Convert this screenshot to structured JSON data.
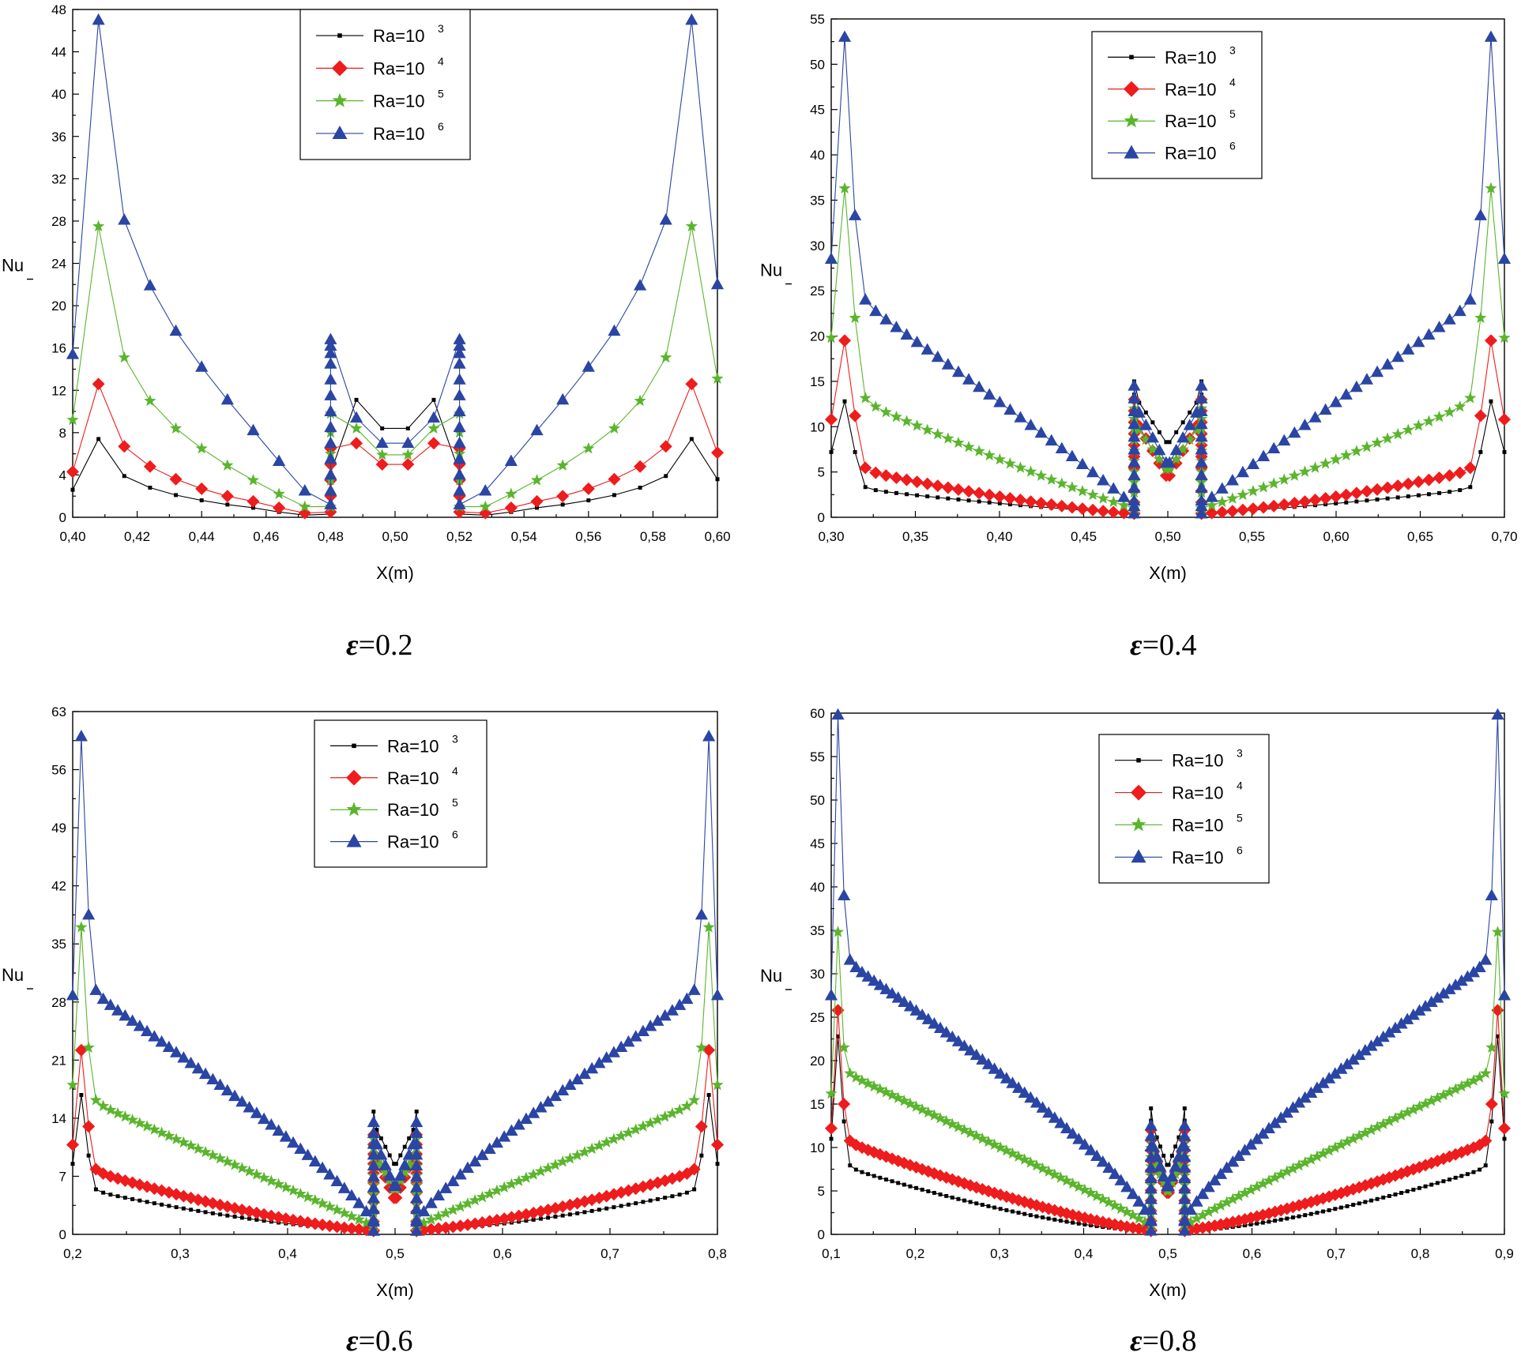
{
  "colors": {
    "black": "#000000",
    "red": "#ee1c1c",
    "green": "#5ab52d",
    "blue": "#2a45a3"
  },
  "chart_data": [
    {
      "type": "line",
      "title": "",
      "caption": {
        "symbol": "ε",
        "text": "=0.2"
      },
      "xlabel": "X(m)",
      "ylabel": "Nu",
      "xlim": [
        0.4,
        0.6
      ],
      "ylim": [
        0,
        48
      ],
      "xticks": [
        0.4,
        0.42,
        0.44,
        0.46,
        0.48,
        0.5,
        0.52,
        0.54,
        0.56,
        0.58,
        0.6
      ],
      "xtick_labels": [
        "0,40",
        "0,42",
        "0,44",
        "0,46",
        "0,48",
        "0,50",
        "0,52",
        "0,54",
        "0,56",
        "0,58",
        "0,60"
      ],
      "yticks": [
        0,
        4,
        8,
        12,
        16,
        20,
        24,
        28,
        32,
        36,
        40,
        44,
        48
      ],
      "ytick_labels": [
        "0",
        "4",
        "8",
        "12",
        "16",
        "20",
        "24",
        "28",
        "32",
        "36",
        "40",
        "44",
        "48"
      ],
      "legend_position": "top-center",
      "series": [
        {
          "name": "Ra=10",
          "sup": "3",
          "marker": "square",
          "color": "#000000",
          "x": [
            0.4,
            0.408,
            0.416,
            0.424,
            0.432,
            0.44,
            0.448,
            0.456,
            0.464,
            0.472,
            0.48,
            0.48,
            0.48,
            0.48,
            0.48,
            0.488,
            0.496,
            0.504,
            0.512,
            0.52,
            0.52,
            0.52,
            0.52,
            0.52,
            0.528,
            0.536,
            0.544,
            0.552,
            0.56,
            0.568,
            0.576,
            0.584,
            0.592,
            0.6
          ],
          "y": [
            2.6,
            7.4,
            3.9,
            2.8,
            2.1,
            1.6,
            1.2,
            0.9,
            0.5,
            0.2,
            0.3,
            1.5,
            2.5,
            3.5,
            4.2,
            11.1,
            8.4,
            8.4,
            11.1,
            4.2,
            3.5,
            2.5,
            1.5,
            0.3,
            0.2,
            0.5,
            0.9,
            1.2,
            1.6,
            2.1,
            2.8,
            3.9,
            7.4,
            3.6
          ]
        },
        {
          "name": "Ra=10",
          "sup": "4",
          "marker": "diamond",
          "color": "#ee1c1c",
          "x": [
            0.4,
            0.408,
            0.416,
            0.424,
            0.432,
            0.44,
            0.448,
            0.456,
            0.464,
            0.472,
            0.48,
            0.48,
            0.48,
            0.48,
            0.48,
            0.488,
            0.496,
            0.504,
            0.512,
            0.52,
            0.52,
            0.52,
            0.52,
            0.52,
            0.528,
            0.536,
            0.544,
            0.552,
            0.56,
            0.568,
            0.576,
            0.584,
            0.592,
            0.6
          ],
          "y": [
            4.3,
            12.6,
            6.7,
            4.8,
            3.6,
            2.7,
            2.0,
            1.5,
            0.9,
            0.4,
            0.5,
            2.0,
            3.5,
            5.0,
            6.5,
            7.0,
            5.0,
            5.0,
            7.0,
            6.5,
            5.0,
            3.5,
            2.0,
            0.5,
            0.4,
            0.9,
            1.5,
            2.0,
            2.7,
            3.6,
            4.8,
            6.7,
            12.6,
            6.1
          ]
        },
        {
          "name": "Ra=10",
          "sup": "5",
          "marker": "star",
          "color": "#5ab52d",
          "x": [
            0.4,
            0.408,
            0.416,
            0.424,
            0.432,
            0.44,
            0.448,
            0.456,
            0.464,
            0.472,
            0.48,
            0.48,
            0.48,
            0.48,
            0.48,
            0.488,
            0.496,
            0.504,
            0.512,
            0.52,
            0.52,
            0.52,
            0.52,
            0.52,
            0.528,
            0.536,
            0.544,
            0.552,
            0.56,
            0.568,
            0.576,
            0.584,
            0.592,
            0.6
          ],
          "y": [
            9.2,
            27.5,
            15.1,
            11.0,
            8.4,
            6.5,
            4.9,
            3.5,
            2.2,
            1.0,
            1.0,
            3.5,
            6.0,
            8.0,
            9.8,
            8.4,
            5.9,
            5.9,
            8.4,
            9.8,
            8.0,
            6.0,
            3.5,
            1.0,
            1.0,
            2.2,
            3.5,
            4.9,
            6.5,
            8.4,
            11.0,
            15.1,
            27.5,
            13.1
          ]
        },
        {
          "name": "Ra=10",
          "sup": "6",
          "marker": "triangle",
          "color": "#2a45a3",
          "x": [
            0.4,
            0.408,
            0.416,
            0.424,
            0.432,
            0.44,
            0.448,
            0.456,
            0.464,
            0.472,
            0.48,
            0.48,
            0.48,
            0.48,
            0.48,
            0.48,
            0.48,
            0.48,
            0.48,
            0.48,
            0.48,
            0.48,
            0.48,
            0.488,
            0.496,
            0.504,
            0.512,
            0.52,
            0.52,
            0.52,
            0.52,
            0.52,
            0.52,
            0.52,
            0.52,
            0.52,
            0.52,
            0.52,
            0.52,
            0.52,
            0.528,
            0.536,
            0.544,
            0.552,
            0.56,
            0.568,
            0.576,
            0.584,
            0.592,
            0.6
          ],
          "y": [
            15.4,
            47.0,
            28.1,
            21.9,
            17.6,
            14.2,
            11.1,
            8.2,
            5.3,
            2.5,
            1.2,
            2.5,
            4.0,
            5.5,
            7.0,
            8.5,
            10.0,
            11.5,
            13.0,
            14.5,
            15.5,
            16.2,
            16.8,
            9.4,
            7.0,
            7.0,
            9.4,
            16.8,
            16.2,
            15.5,
            14.5,
            13.0,
            11.5,
            10.0,
            8.5,
            7.0,
            5.5,
            4.0,
            2.5,
            1.2,
            2.5,
            5.3,
            8.2,
            11.1,
            14.2,
            17.6,
            21.9,
            28.1,
            47.0,
            22.0
          ]
        }
      ]
    },
    {
      "type": "line",
      "title": "",
      "caption": {
        "symbol": "ε",
        "text": "=0.4"
      },
      "xlabel": "X(m)",
      "ylabel": "Nu",
      "xlim": [
        0.3,
        0.7
      ],
      "ylim": [
        0,
        55
      ],
      "xticks": [
        0.3,
        0.35,
        0.4,
        0.45,
        0.5,
        0.55,
        0.6,
        0.65,
        0.7
      ],
      "xtick_labels": [
        "0,30",
        "0,35",
        "0,40",
        "0,45",
        "0,50",
        "0,55",
        "0,60",
        "0,65",
        "0,70"
      ],
      "yticks": [
        0,
        5,
        10,
        15,
        20,
        25,
        30,
        35,
        40,
        45,
        50,
        55
      ],
      "ytick_labels": [
        "0",
        "5",
        "10",
        "15",
        "20",
        "25",
        "30",
        "35",
        "40",
        "45",
        "50",
        "55"
      ],
      "legend_position": "top-center",
      "series": [
        {
          "name": "Ra=10",
          "sup": "3",
          "marker": "square",
          "color": "#000000",
          "profile": {
            "xa": 0.3,
            "xp": 0.308,
            "xe": 0.48,
            "n": 28,
            "start": 7.2,
            "peak": 12.8,
            "after": 7.2,
            "a": 3.3,
            "b": 0.5,
            "p": 1.3,
            "mid": 8.3,
            "wall": 15.0
          }
        },
        {
          "name": "Ra=10",
          "sup": "4",
          "marker": "diamond",
          "color": "#ee1c1c",
          "profile": {
            "xa": 0.3,
            "xp": 0.308,
            "xe": 0.48,
            "n": 28,
            "start": 10.8,
            "peak": 19.5,
            "after": 11.2,
            "a": 5.5,
            "b": 0.4,
            "p": 1.3,
            "mid": 4.6,
            "wall": 13.0
          }
        },
        {
          "name": "Ra=10",
          "sup": "5",
          "marker": "star",
          "color": "#5ab52d",
          "profile": {
            "xa": 0.3,
            "xp": 0.308,
            "xe": 0.48,
            "n": 28,
            "start": 19.8,
            "peak": 36.3,
            "after": 22.0,
            "a": 13.5,
            "b": 1.0,
            "p": 1.1,
            "mid": 5.3,
            "wall": 12.0
          }
        },
        {
          "name": "Ra=10",
          "sup": "6",
          "marker": "triangle",
          "color": "#2a45a3",
          "profile": {
            "xa": 0.3,
            "xp": 0.308,
            "xe": 0.48,
            "n": 28,
            "start": 28.5,
            "peak": 53.0,
            "after": 33.3,
            "a": 25.0,
            "b": 1.2,
            "p": 0.95,
            "mid": 6.0,
            "wall": 14.5
          }
        }
      ]
    },
    {
      "type": "line",
      "title": "",
      "caption": {
        "symbol": "ε",
        "text": "=0.6"
      },
      "xlabel": "X(m)",
      "ylabel": "Nu",
      "xlim": [
        0.2,
        0.8
      ],
      "ylim": [
        0,
        63
      ],
      "xticks": [
        0.2,
        0.3,
        0.4,
        0.5,
        0.6,
        0.7,
        0.8
      ],
      "xtick_labels": [
        "0,2",
        "0,3",
        "0,4",
        "0,5",
        "0,6",
        "0,7",
        "0,8"
      ],
      "yticks": [
        0,
        7,
        14,
        21,
        28,
        35,
        42,
        49,
        56,
        63
      ],
      "ytick_labels": [
        "0",
        "7",
        "14",
        "21",
        "28",
        "35",
        "42",
        "49",
        "56",
        "63"
      ],
      "legend_position": "top-center",
      "series": [
        {
          "name": "Ra=10",
          "sup": "3",
          "marker": "square",
          "color": "#000000",
          "profile": {
            "xa": 0.2,
            "xp": 0.208,
            "xe": 0.48,
            "n": 40,
            "start": 8.5,
            "peak": 16.8,
            "after": 9.5,
            "a": 5.5,
            "b": 0.5,
            "p": 1.5,
            "mid": 8.5,
            "wall": 14.8
          }
        },
        {
          "name": "Ra=10",
          "sup": "4",
          "marker": "diamond",
          "color": "#ee1c1c",
          "profile": {
            "xa": 0.2,
            "xp": 0.208,
            "xe": 0.48,
            "n": 40,
            "start": 10.8,
            "peak": 22.2,
            "after": 13.0,
            "a": 8.0,
            "b": 0.5,
            "p": 1.4,
            "mid": 4.4,
            "wall": 12.0
          }
        },
        {
          "name": "Ra=10",
          "sup": "5",
          "marker": "star",
          "color": "#5ab52d",
          "profile": {
            "xa": 0.2,
            "xp": 0.208,
            "xe": 0.48,
            "n": 40,
            "start": 18.0,
            "peak": 37.0,
            "after": 22.5,
            "a": 16.5,
            "b": 1.0,
            "p": 1.0,
            "mid": 5.5,
            "wall": 11.5
          }
        },
        {
          "name": "Ra=10",
          "sup": "6",
          "marker": "triangle",
          "color": "#2a45a3",
          "profile": {
            "xa": 0.2,
            "xp": 0.208,
            "xe": 0.48,
            "n": 40,
            "start": 28.8,
            "peak": 60.0,
            "after": 38.5,
            "a": 30.0,
            "b": 1.5,
            "p": 0.85,
            "mid": 5.8,
            "wall": 13.5
          }
        }
      ]
    },
    {
      "type": "line",
      "title": "",
      "caption": {
        "symbol": "ε",
        "text": "=0.8"
      },
      "xlabel": "X(m)",
      "ylabel": "Nu",
      "xlim": [
        0.1,
        0.9
      ],
      "ylim": [
        0,
        60
      ],
      "xticks": [
        0.1,
        0.2,
        0.3,
        0.4,
        0.5,
        0.6,
        0.7,
        0.8,
        0.9
      ],
      "xtick_labels": [
        "0,1",
        "0,2",
        "0,3",
        "0,4",
        "0,5",
        "0,6",
        "0,7",
        "0,8",
        "0,9"
      ],
      "yticks": [
        0,
        5,
        10,
        15,
        20,
        25,
        30,
        35,
        40,
        45,
        50,
        55,
        60
      ],
      "ytick_labels": [
        "0",
        "5",
        "10",
        "15",
        "20",
        "25",
        "30",
        "35",
        "40",
        "45",
        "50",
        "55",
        "60"
      ],
      "legend_position": "top-center",
      "series": [
        {
          "name": "Ra=10",
          "sup": "3",
          "marker": "square",
          "color": "#000000",
          "profile": {
            "xa": 0.1,
            "xp": 0.108,
            "xe": 0.48,
            "n": 52,
            "start": 11.0,
            "peak": 22.8,
            "after": 13.0,
            "a": 8.0,
            "b": 0.4,
            "p": 1.5,
            "mid": 8.0,
            "wall": 14.5
          }
        },
        {
          "name": "Ra=10",
          "sup": "4",
          "marker": "diamond",
          "color": "#ee1c1c",
          "profile": {
            "xa": 0.1,
            "xp": 0.108,
            "xe": 0.48,
            "n": 52,
            "start": 12.2,
            "peak": 25.8,
            "after": 15.0,
            "a": 11.0,
            "b": 0.5,
            "p": 1.3,
            "mid": 4.8,
            "wall": 12.0
          }
        },
        {
          "name": "Ra=10",
          "sup": "5",
          "marker": "star",
          "color": "#5ab52d",
          "profile": {
            "xa": 0.1,
            "xp": 0.108,
            "xe": 0.48,
            "n": 52,
            "start": 16.2,
            "peak": 34.8,
            "after": 21.5,
            "a": 19.0,
            "b": 1.0,
            "p": 0.95,
            "mid": 5.0,
            "wall": 11.0
          }
        },
        {
          "name": "Ra=10",
          "sup": "6",
          "marker": "triangle",
          "color": "#2a45a3",
          "profile": {
            "xa": 0.1,
            "xp": 0.108,
            "xe": 0.48,
            "n": 52,
            "start": 27.5,
            "peak": 59.8,
            "after": 39.0,
            "a": 32.0,
            "b": 1.5,
            "p": 0.8,
            "mid": 5.5,
            "wall": 12.5
          }
        }
      ]
    }
  ]
}
